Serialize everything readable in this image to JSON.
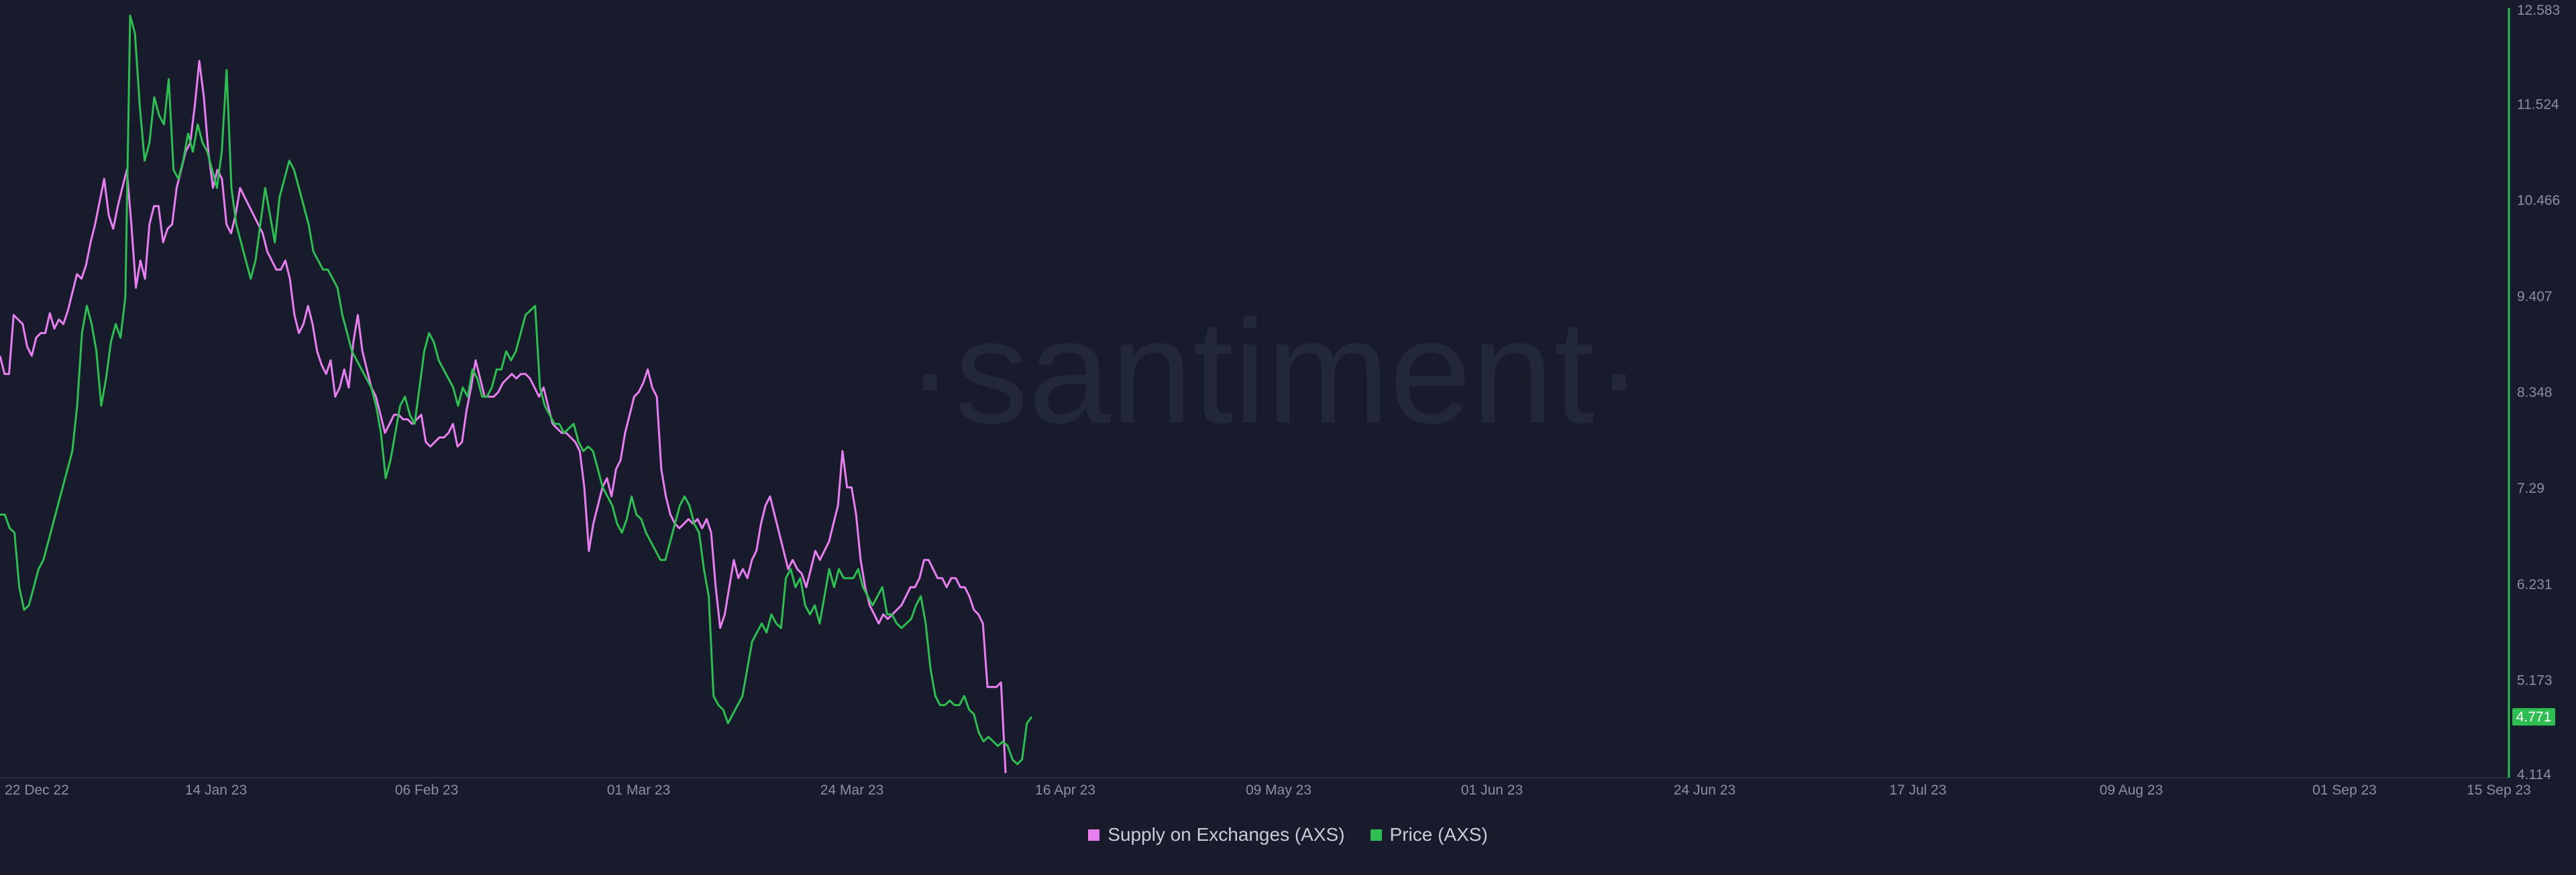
{
  "watermark": "·santiment·",
  "chart_data": {
    "type": "line",
    "x_ticks": [
      "22 Dec 22",
      "14 Jan 23",
      "06 Feb 23",
      "01 Mar 23",
      "24 Mar 23",
      "16 Apr 23",
      "09 May 23",
      "01 Jun 23",
      "24 Jun 23",
      "17 Jul 23",
      "09 Aug 23",
      "01 Sep 23",
      "15 Sep 23"
    ],
    "right_axis": {
      "ticks": [
        "12.583",
        "11.524",
        "10.466",
        "9.407",
        "8.348",
        "7.29",
        "6.231",
        "5.173",
        "4.114"
      ],
      "ylim": [
        4.114,
        12.583
      ],
      "current_value": "4.771",
      "current_value_color": "#2fbe52"
    },
    "series": [
      {
        "name": "Supply on Exchanges (AXS)",
        "color": "#e87ff0",
        "axis": "hidden (relative scale, plotted on price scale)",
        "x_range": [
          0,
          1499
        ],
        "values": [
          8.75,
          8.55,
          8.55,
          9.2,
          9.15,
          9.1,
          8.85,
          8.75,
          8.95,
          9.0,
          9.0,
          9.22,
          9.05,
          9.15,
          9.1,
          9.25,
          9.45,
          9.65,
          9.6,
          9.75,
          10.0,
          10.2,
          10.45,
          10.7,
          10.3,
          10.15,
          10.4,
          10.6,
          10.8,
          10.2,
          9.5,
          9.8,
          9.6,
          10.2,
          10.4,
          10.4,
          10.0,
          10.15,
          10.2,
          10.6,
          10.8,
          11.0,
          11.1,
          11.5,
          12.0,
          11.6,
          11.0,
          10.6,
          10.8,
          10.7,
          10.2,
          10.1,
          10.3,
          10.6,
          10.5,
          10.4,
          10.3,
          10.2,
          10.1,
          9.9,
          9.8,
          9.7,
          9.7,
          9.8,
          9.6,
          9.2,
          9.0,
          9.1,
          9.3,
          9.1,
          8.8,
          8.65,
          8.55,
          8.7,
          8.3,
          8.4,
          8.6,
          8.4,
          8.9,
          9.2,
          8.8,
          8.6,
          8.4,
          8.3,
          8.1,
          7.9,
          8.0,
          8.1,
          8.1,
          8.05,
          8.05,
          8.0,
          8.05,
          8.1,
          7.8,
          7.75,
          7.8,
          7.85,
          7.85,
          7.9,
          8.0,
          7.75,
          7.8,
          8.15,
          8.4,
          8.7,
          8.5,
          8.3,
          8.3,
          8.3,
          8.35,
          8.45,
          8.5,
          8.55,
          8.5,
          8.55,
          8.55,
          8.5,
          8.4,
          8.3,
          8.4,
          8.2,
          8.0,
          7.95,
          7.9,
          7.9,
          7.85,
          7.8,
          7.7,
          7.3,
          6.6,
          6.9,
          7.1,
          7.3,
          7.4,
          7.2,
          7.5,
          7.6,
          7.9,
          8.1,
          8.3,
          8.35,
          8.45,
          8.6,
          8.4,
          8.3,
          7.5,
          7.2,
          7.0,
          6.9,
          6.85,
          6.9,
          6.95,
          6.9,
          6.95,
          6.85,
          6.95,
          6.8,
          6.2,
          5.75,
          5.9,
          6.2,
          6.5,
          6.3,
          6.4,
          6.3,
          6.5,
          6.6,
          6.9,
          7.1,
          7.2,
          7.0,
          6.8,
          6.6,
          6.4,
          6.5,
          6.4,
          6.35,
          6.2,
          6.4,
          6.6,
          6.5,
          6.6,
          6.7,
          6.9,
          7.1,
          7.7,
          7.3,
          7.3,
          7.0,
          6.5,
          6.2,
          6.0,
          5.9,
          5.8,
          5.9,
          5.85,
          5.9,
          5.95,
          6.0,
          6.1,
          6.2,
          6.2,
          6.3,
          6.5,
          6.5,
          6.4,
          6.3,
          6.3,
          6.2,
          6.3,
          6.3,
          6.2,
          6.2,
          6.1,
          5.95,
          5.9,
          5.8,
          5.1,
          5.1,
          5.1,
          5.15,
          4.15
        ]
      },
      {
        "name": "Price (AXS)",
        "color": "#2fbe52",
        "axis": "right",
        "x_range": [
          0,
          1538
        ],
        "values": [
          7.0,
          7.0,
          6.85,
          6.8,
          6.2,
          5.95,
          6.0,
          6.2,
          6.4,
          6.5,
          6.7,
          6.9,
          7.1,
          7.3,
          7.5,
          7.7,
          8.2,
          9.0,
          9.3,
          9.1,
          8.8,
          8.2,
          8.5,
          8.9,
          9.1,
          8.95,
          9.4,
          12.5,
          12.3,
          11.5,
          10.9,
          11.1,
          11.6,
          11.4,
          11.3,
          11.8,
          10.8,
          10.7,
          10.9,
          11.2,
          11.0,
          11.3,
          11.1,
          11.0,
          10.8,
          10.6,
          11.0,
          11.9,
          10.6,
          10.2,
          10.0,
          9.8,
          9.6,
          9.8,
          10.2,
          10.6,
          10.3,
          10.0,
          10.5,
          10.7,
          10.9,
          10.8,
          10.6,
          10.4,
          10.2,
          9.9,
          9.8,
          9.7,
          9.7,
          9.6,
          9.5,
          9.2,
          9.0,
          8.8,
          8.7,
          8.6,
          8.5,
          8.4,
          8.2,
          7.9,
          7.4,
          7.6,
          7.9,
          8.2,
          8.3,
          8.1,
          8.0,
          8.4,
          8.8,
          9.0,
          8.9,
          8.7,
          8.6,
          8.5,
          8.4,
          8.2,
          8.4,
          8.3,
          8.6,
          8.5,
          8.3,
          8.3,
          8.4,
          8.6,
          8.6,
          8.8,
          8.7,
          8.8,
          9.0,
          9.2,
          9.25,
          9.3,
          8.4,
          8.2,
          8.1,
          8.0,
          8.0,
          7.9,
          7.95,
          8.0,
          7.8,
          7.7,
          7.75,
          7.7,
          7.5,
          7.3,
          7.2,
          7.1,
          6.9,
          6.8,
          6.95,
          7.2,
          7.0,
          6.95,
          6.8,
          6.7,
          6.6,
          6.5,
          6.5,
          6.7,
          6.9,
          7.1,
          7.2,
          7.1,
          6.9,
          6.8,
          6.4,
          6.1,
          5.0,
          4.9,
          4.85,
          4.7,
          4.8,
          4.9,
          5.0,
          5.3,
          5.6,
          5.7,
          5.8,
          5.7,
          5.9,
          5.8,
          5.75,
          6.3,
          6.4,
          6.2,
          6.3,
          6.0,
          5.9,
          6.0,
          5.8,
          6.1,
          6.4,
          6.2,
          6.4,
          6.3,
          6.3,
          6.3,
          6.4,
          6.2,
          6.1,
          6.0,
          6.1,
          6.2,
          5.9,
          5.9,
          5.8,
          5.75,
          5.8,
          5.85,
          6.0,
          6.1,
          5.8,
          5.3,
          5.0,
          4.9,
          4.9,
          4.95,
          4.9,
          4.9,
          5.0,
          4.85,
          4.8,
          4.6,
          4.5,
          4.55,
          4.5,
          4.45,
          4.5,
          4.45,
          4.3,
          4.25,
          4.3,
          4.7,
          4.77
        ]
      }
    ],
    "legend": {
      "position": "bottom-center"
    },
    "grid": false
  }
}
